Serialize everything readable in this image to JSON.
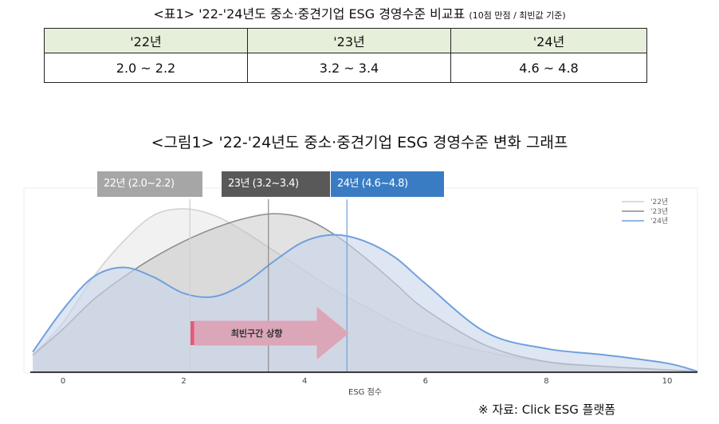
{
  "table": {
    "title": "<표1> '22-'24년도 중소·중견기업 ESG 경영수준 비교표",
    "title_note": "(10점 만점 / 최빈값 기준)",
    "headers": [
      "'22년",
      "'23년",
      "'24년"
    ],
    "rows": [
      [
        "2.0 ~ 2.2",
        "3.2 ~ 3.4",
        "4.6 ~ 4.8"
      ]
    ],
    "header_bg": "#e6efd9"
  },
  "figure": {
    "title": "<그림1> '22-'24년도 중소·중견기업 ESG 경영수준 변화 그래프",
    "badges": [
      {
        "label": "22년 (2.0~2.2)",
        "color": "#a6a6a6"
      },
      {
        "label": "23년 (3.2~3.4)",
        "color": "#595959"
      },
      {
        "label": "24년 (4.6~4.8)",
        "color": "#3a7cc4"
      }
    ],
    "arrow_label": "최빈구간 상향"
  },
  "source": "※ 자료: Click ESG 플랫폼",
  "chart_data": {
    "type": "area",
    "xlabel": "ESG 점수",
    "ylabel": "",
    "xlim": [
      -0.5,
      10.5
    ],
    "x_ticks": [
      0,
      2,
      4,
      6,
      8,
      10
    ],
    "grid": false,
    "legend_position": "top-right",
    "series": [
      {
        "name": "'22년",
        "color": "#d0d0d0",
        "x": [
          -0.5,
          0,
          0.5,
          1,
          1.5,
          2,
          2.5,
          3,
          3.5,
          4,
          4.5,
          5,
          5.5,
          6,
          7,
          8,
          9,
          10,
          10.5
        ],
        "y": [
          0.1,
          0.3,
          0.58,
          0.8,
          0.96,
          1.0,
          0.96,
          0.86,
          0.74,
          0.62,
          0.5,
          0.4,
          0.3,
          0.22,
          0.12,
          0.06,
          0.03,
          0.01,
          0.0
        ]
      },
      {
        "name": "'23년",
        "color": "#8c8c8c",
        "x": [
          -0.5,
          0,
          0.5,
          1,
          1.5,
          2,
          2.5,
          3,
          3.5,
          4,
          4.5,
          5,
          5.5,
          6,
          7,
          8,
          9,
          10,
          10.5
        ],
        "y": [
          0.1,
          0.26,
          0.44,
          0.58,
          0.7,
          0.8,
          0.88,
          0.94,
          0.97,
          0.94,
          0.84,
          0.7,
          0.54,
          0.38,
          0.16,
          0.06,
          0.03,
          0.01,
          0.0
        ]
      },
      {
        "name": "'24년",
        "color": "#6fa0dc",
        "x": [
          -0.5,
          0,
          0.5,
          1,
          1.5,
          2,
          2.5,
          3,
          3.5,
          4,
          4.5,
          5,
          5.5,
          6,
          7,
          8,
          9,
          10,
          10.5
        ],
        "y": [
          0.12,
          0.38,
          0.58,
          0.64,
          0.58,
          0.48,
          0.46,
          0.54,
          0.68,
          0.8,
          0.84,
          0.8,
          0.7,
          0.54,
          0.24,
          0.14,
          0.1,
          0.05,
          0.0
        ]
      }
    ],
    "markers": [
      {
        "x": 2.1,
        "color": "#cfcfcf"
      },
      {
        "x": 3.4,
        "color": "#8c8c8c"
      },
      {
        "x": 4.7,
        "color": "#6fa0dc"
      }
    ]
  }
}
